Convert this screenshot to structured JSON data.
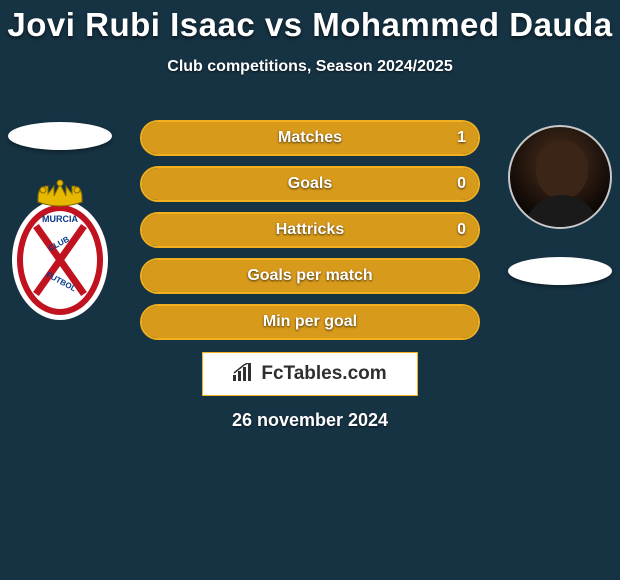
{
  "title": "Jovi Rubi Isaac vs Mohammed Dauda",
  "subtitle": "Club competitions, Season 2024/2025",
  "date": "26 november 2024",
  "colors": {
    "background": "#163344",
    "title_text": "#ffffff",
    "bar_border": "#f2b01e",
    "bar_border_width": 2,
    "bar_fill": "#d89a1b",
    "bar_label": "#ffffff",
    "branding_bg": "#ffffff",
    "branding_border": "#f2b01e",
    "branding_text": "#2f2f2f",
    "ellipse_bg": "#ffffff"
  },
  "typography": {
    "title_fontsize": 33,
    "title_weight": 900,
    "subtitle_fontsize": 16,
    "bar_label_fontsize": 16,
    "date_fontsize": 18,
    "brand_fontsize": 19
  },
  "bars": [
    {
      "label": "Matches",
      "value": "1",
      "fill_pct": 100
    },
    {
      "label": "Goals",
      "value": "0",
      "fill_pct": 100
    },
    {
      "label": "Hattricks",
      "value": "0",
      "fill_pct": 100
    },
    {
      "label": "Goals per match",
      "value": "",
      "fill_pct": 100
    },
    {
      "label": "Min per goal",
      "value": "",
      "fill_pct": 100
    }
  ],
  "bar_layout": {
    "track_width": 340,
    "track_height": 36,
    "gap": 10,
    "border_radius": 18
  },
  "branding": {
    "text": "FcTables.com"
  },
  "left_player": {
    "name": "Jovi Rubi Isaac",
    "club_badge": "Real Murcia"
  },
  "right_player": {
    "name": "Mohammed Dauda"
  }
}
